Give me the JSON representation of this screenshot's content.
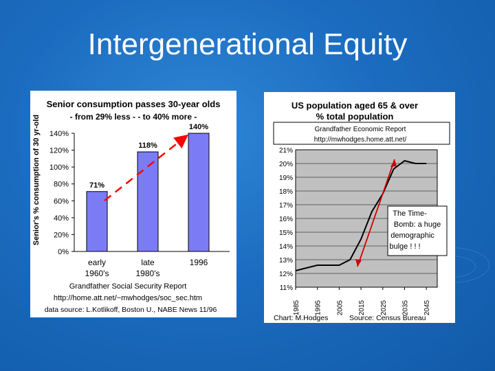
{
  "slide": {
    "title": "Intergenerational Equity"
  },
  "colors": {
    "bar": "#7b7bf5",
    "plot_bg": "#c0c0c0",
    "line": "#000000",
    "arrow": "#ff0000",
    "background": "#1b6cc0"
  },
  "chart_data": [
    {
      "type": "bar",
      "title": "Senior consumption passes 30-year olds",
      "subtitle": "- from 29% less - - to 40% more -",
      "ylabel": "Senior's % consumption of 30 yr-old",
      "xlabel": "",
      "categories": [
        "early 1960's",
        "late 1980's",
        "1996"
      ],
      "values": [
        71,
        118,
        140
      ],
      "data_labels": [
        "71%",
        "118%",
        "140%"
      ],
      "ylim": [
        0,
        140
      ],
      "yticks": [
        "0%",
        "20%",
        "40%",
        "60%",
        "80%",
        "100%",
        "120%",
        "140%"
      ],
      "grid": false,
      "footer": [
        "Grandfather Social Security Report",
        "http://home.att.net/~mwhodges/soc_sec.htm",
        "data source: L.Kotlikoff, Boston U., NABE News 11/96"
      ],
      "annotation": "red dashed trend arrow rising from early 1960's bar to 1996 bar"
    },
    {
      "type": "line",
      "title": "US population aged 65 & over % total population",
      "xlabel": "",
      "ylabel": "",
      "x": [
        1985,
        1990,
        1995,
        2000,
        2005,
        2010,
        2015,
        2020,
        2025,
        2030,
        2035,
        2040,
        2045
      ],
      "y": [
        12.2,
        12.4,
        12.6,
        12.6,
        12.6,
        13.0,
        14.5,
        16.5,
        17.8,
        19.6,
        20.2,
        20.0,
        20.0
      ],
      "xticks": [
        "1985",
        "1995",
        "2005",
        "2015",
        "2025",
        "2035",
        "2045"
      ],
      "yticks": [
        "11%",
        "12%",
        "13%",
        "14%",
        "15%",
        "16%",
        "17%",
        "18%",
        "19%",
        "20%",
        "21%"
      ],
      "ylim": [
        11,
        21
      ],
      "grid": true,
      "legend_box": [
        "Grandfather Economic Report",
        "http://mwhodges.home.att.net/"
      ],
      "callout": [
        "The Time-",
        "Bomb: a huge",
        "demographic",
        "bulge ! ! !"
      ],
      "footer_left": "Chart: M.Hodges",
      "footer_right": "Source: Census Bureau"
    }
  ]
}
